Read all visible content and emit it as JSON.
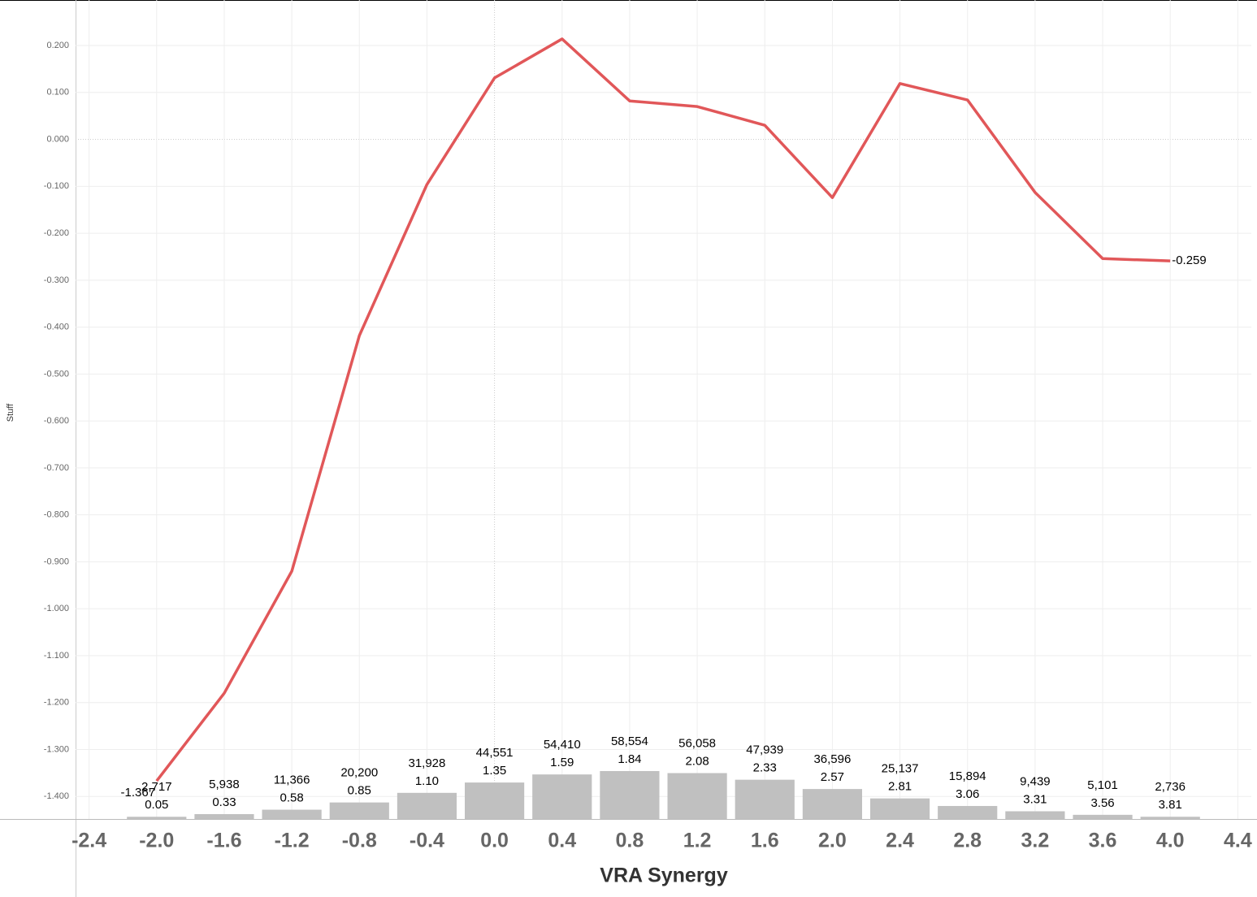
{
  "chart_data": {
    "type": "combo",
    "x_label": "VRA Synergy",
    "y_label": "Stuff",
    "x": [
      -2.0,
      -1.6,
      -1.2,
      -0.8,
      -0.4,
      0.0,
      0.4,
      0.8,
      1.2,
      1.6,
      2.0,
      2.4,
      2.8,
      3.2,
      3.6,
      4.0
    ],
    "xlim": [
      -2.48,
      4.48
    ],
    "xticks": [
      -2.4,
      {
        "value": -2.0,
        "label": "-2.0"
      },
      -1.6,
      -1.2,
      -0.8,
      -0.4,
      {
        "value": 0.0,
        "label": "0.0"
      },
      0.4,
      0.8,
      1.2,
      1.6,
      {
        "value": 2.0,
        "label": "2.0"
      },
      2.4,
      2.8,
      3.2,
      3.6,
      {
        "value": 4.0,
        "label": "4.0"
      },
      4.4
    ],
    "ylim": [
      -1.448,
      0.297
    ],
    "yticks": [
      {
        "value": 0.2,
        "label": "0.200"
      },
      {
        "value": 0.1,
        "label": "0.100"
      },
      {
        "value": 0,
        "label": "0.000"
      },
      {
        "value": -0.1,
        "label": "-0.100"
      },
      {
        "value": -0.2,
        "label": "-0.200"
      },
      {
        "value": -0.3,
        "label": "-0.300"
      },
      {
        "value": -0.4,
        "label": "-0.400"
      },
      {
        "value": -0.5,
        "label": "-0.500"
      },
      {
        "value": -0.6,
        "label": "-0.600"
      },
      {
        "value": -0.7,
        "label": "-0.700"
      },
      {
        "value": -0.8,
        "label": "-0.800"
      },
      {
        "value": -0.9,
        "label": "-0.900"
      },
      {
        "value": -1.0,
        "label": "-1.000"
      },
      {
        "value": -1.1,
        "label": "-1.100"
      },
      {
        "value": -1.2,
        "label": "-1.200"
      },
      {
        "value": -1.3,
        "label": "-1.300"
      },
      {
        "value": -1.4,
        "label": "-1.400"
      }
    ],
    "y2lim": [
      0,
      1000000
    ],
    "grid": true,
    "series": [
      {
        "type": "line",
        "color": "#e15759",
        "values": [
          -1.367,
          -1.18,
          -0.92,
          -0.418,
          -0.096,
          0.131,
          0.214,
          0.082,
          0.07,
          0.03,
          -0.124,
          0.119,
          0.084,
          -0.113,
          -0.254,
          -0.259
        ],
        "value_labels": [
          "-1.367",
          null,
          null,
          null,
          null,
          null,
          null,
          null,
          null,
          null,
          null,
          null,
          null,
          null,
          null,
          "-0.259"
        ]
      },
      {
        "type": "bar",
        "axis": "y2",
        "color": "#c0c0c0",
        "values": [
          2717,
          5938,
          11366,
          20200,
          31928,
          44551,
          54410,
          58554,
          56058,
          47939,
          36596,
          25137,
          15894,
          9439,
          5101,
          2736
        ],
        "value_labels": [
          "2,717",
          "5,938",
          "11,366",
          "20,200",
          "31,928",
          "44,551",
          "54,410",
          "58,554",
          "56,058",
          "47,939",
          "36,596",
          "25,137",
          "15,894",
          "9,439",
          "5,101",
          "2,736"
        ],
        "sublabels": [
          "0.05",
          "0.33",
          "0.58",
          "0.85",
          "1.10",
          "1.35",
          "1.59",
          "1.84",
          "2.08",
          "2.33",
          "2.57",
          "2.81",
          "3.06",
          "3.31",
          "3.56",
          "3.81"
        ]
      }
    ]
  }
}
